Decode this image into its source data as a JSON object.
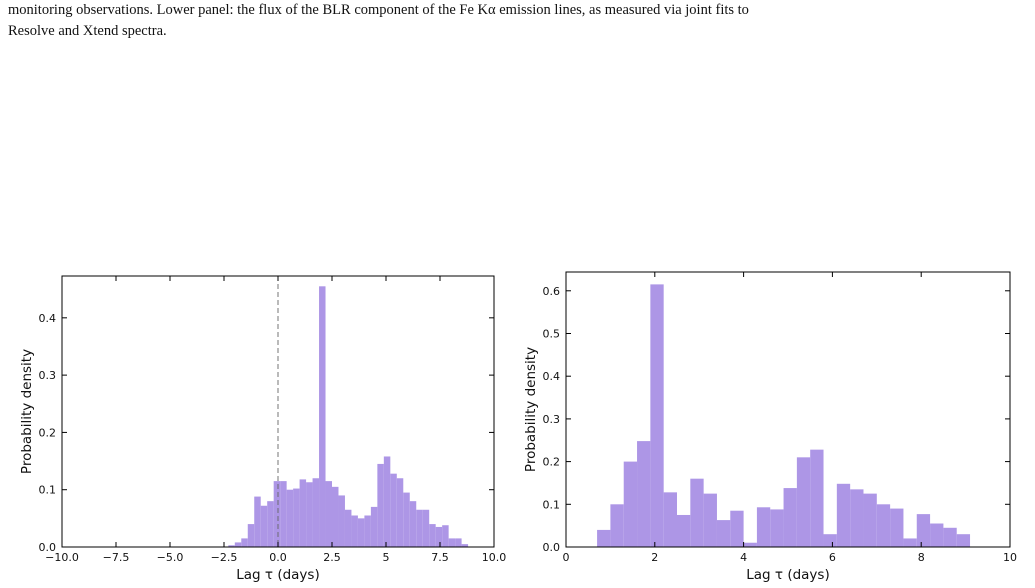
{
  "caption": {
    "lines": [
      "monitoring observations. Lower panel: the flux of the BLR component of the Fe Kα emission lines, as measured via joint fits to",
      "Resolve and Xtend spectra."
    ]
  },
  "chart_data": [
    {
      "type": "histogram",
      "xlabel": "Lag τ (days)",
      "ylabel": "Probability density",
      "color": "#ad96e6",
      "bins": [
        -2.3,
        -2.0,
        -1.7,
        -1.4,
        -1.1,
        -0.8,
        -0.5,
        -0.2,
        0.1,
        0.4,
        0.7,
        1.0,
        1.3,
        1.6,
        1.9,
        2.2,
        2.5,
        2.8,
        3.1,
        3.4,
        3.7,
        4.0,
        4.3,
        4.6,
        4.9,
        5.2,
        5.5,
        5.8,
        6.1,
        6.4,
        6.7,
        7.0,
        7.3,
        7.6,
        7.9,
        8.2,
        8.5,
        8.8
      ],
      "values": [
        0.003,
        0.008,
        0.015,
        0.04,
        0.088,
        0.072,
        0.08,
        0.115,
        0.115,
        0.1,
        0.102,
        0.118,
        0.113,
        0.12,
        0.455,
        0.115,
        0.105,
        0.09,
        0.065,
        0.055,
        0.05,
        0.055,
        0.07,
        0.145,
        0.158,
        0.128,
        0.12,
        0.095,
        0.08,
        0.065,
        0.065,
        0.04,
        0.035,
        0.038,
        0.015,
        0.015,
        0.005
      ],
      "vline": 0,
      "xlim": [
        -10,
        10
      ],
      "xticks": [
        {
          "value": -10,
          "label": "−10.0"
        },
        {
          "value": -7.5,
          "label": "−7.5"
        },
        {
          "value": -5,
          "label": "−5.0"
        },
        {
          "value": -2.5,
          "label": "−2.5"
        },
        {
          "value": 0,
          "label": "0.0"
        },
        2.5,
        5,
        {
          "value": 7.5,
          "label": "7.5"
        },
        {
          "value": 10,
          "label": "10.0"
        }
      ],
      "ylim": [
        0,
        0.473
      ],
      "yticks": [
        {
          "value": 0,
          "label": "0.0"
        },
        0.1,
        0.2,
        0.3,
        0.4
      ]
    },
    {
      "type": "histogram",
      "xlabel": "Lag τ (days)",
      "ylabel": "Probability density",
      "color": "#ad96e6",
      "bins": [
        0.7,
        1.0,
        1.3,
        1.6,
        1.9,
        2.2,
        2.5,
        2.8,
        3.1,
        3.4,
        3.7,
        4.0,
        4.3,
        4.6,
        4.9,
        5.2,
        5.5,
        5.8,
        6.1,
        6.4,
        6.7,
        7.0,
        7.3,
        7.6,
        7.9,
        8.2,
        8.5,
        8.8,
        9.1
      ],
      "values": [
        0.04,
        0.1,
        0.2,
        0.248,
        0.615,
        0.128,
        0.075,
        0.16,
        0.125,
        0.063,
        0.085,
        0.01,
        0.093,
        0.088,
        0.138,
        0.21,
        0.228,
        0.03,
        0.148,
        0.135,
        0.125,
        0.1,
        0.09,
        0.02,
        0.077,
        0.055,
        0.045,
        0.03
      ],
      "xlim": [
        0,
        10
      ],
      "xticks": [
        0,
        2,
        4,
        6,
        8,
        10
      ],
      "ylim": [
        0,
        0.644
      ],
      "yticks": [
        {
          "value": 0,
          "label": "0.0"
        },
        0.1,
        0.2,
        0.3,
        0.4,
        0.5,
        0.6
      ]
    }
  ]
}
